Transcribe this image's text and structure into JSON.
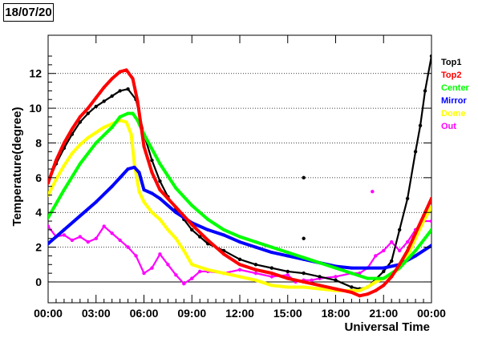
{
  "header": {
    "date": "18/07/20"
  },
  "chart_data": {
    "type": "scatter",
    "title": "",
    "xlabel": "Universal Time",
    "ylabel": "Temperature(degree)",
    "xlim": [
      0,
      24
    ],
    "ylim": [
      -1.2,
      14.2
    ],
    "x_tick_values": [
      0,
      3,
      6,
      9,
      12,
      15,
      18,
      21,
      24
    ],
    "x_tick_labels": [
      "00:00",
      "03:00",
      "06:00",
      "09:00",
      "12:00",
      "15:00",
      "18:00",
      "21:00",
      "00:00"
    ],
    "y_tick_values": [
      0,
      2,
      4,
      6,
      8,
      10,
      12
    ],
    "y_tick_labels": [
      "0",
      "2",
      "4",
      "6",
      "8",
      "10",
      "12"
    ],
    "grid": "horizontal dotted",
    "zero_line": true,
    "legend_position": "right",
    "series": [
      {
        "name": "Top1",
        "color": "#000000",
        "x": [
          0,
          0.5,
          1,
          1.5,
          2,
          2.5,
          3,
          3.5,
          4,
          4.5,
          5,
          5.5,
          6,
          6.5,
          7,
          7.5,
          8,
          8.5,
          9,
          9.5,
          10,
          11,
          12,
          13,
          14,
          15,
          16,
          17,
          18,
          19,
          19.5,
          20,
          21,
          21.5,
          22,
          22.5,
          23,
          23.3,
          23.6,
          24
        ],
        "y": [
          5.7,
          6.8,
          7.7,
          8.5,
          9.2,
          9.7,
          10.1,
          10.4,
          10.7,
          11.0,
          11.1,
          10.5,
          8.5,
          7.0,
          5.8,
          4.9,
          4.2,
          3.6,
          3.0,
          2.6,
          2.2,
          1.8,
          1.3,
          1.0,
          0.8,
          0.6,
          0.5,
          0.3,
          0.1,
          -0.3,
          -0.4,
          -0.3,
          0.6,
          1.2,
          3.0,
          4.8,
          7.5,
          9.0,
          11.0,
          13.0
        ]
      },
      {
        "name": "Top2",
        "color": "#ff0000",
        "x": [
          0,
          0.5,
          1,
          1.5,
          2,
          2.5,
          3,
          3.5,
          4,
          4.5,
          4.9,
          5.3,
          5.6,
          6,
          6.5,
          7,
          7.5,
          8,
          8.5,
          9,
          10,
          11,
          12,
          13,
          14,
          15,
          16,
          17,
          18,
          19,
          19.5,
          20,
          20.5,
          21,
          21.5,
          22,
          22.5,
          23,
          23.5,
          24
        ],
        "y": [
          5.7,
          7.0,
          8.0,
          8.8,
          9.5,
          10.0,
          10.6,
          11.2,
          11.7,
          12.1,
          12.2,
          11.7,
          10.4,
          7.8,
          6.3,
          5.3,
          4.8,
          4.3,
          3.8,
          3.3,
          2.4,
          1.6,
          1.0,
          0.7,
          0.5,
          0.2,
          0.0,
          -0.2,
          -0.4,
          -0.6,
          -0.8,
          -0.7,
          -0.5,
          -0.2,
          0.3,
          1.0,
          1.8,
          2.8,
          3.8,
          4.8
        ]
      },
      {
        "name": "Center",
        "color": "#00ff00",
        "x": [
          0,
          1,
          2,
          3,
          4,
          4.5,
          5,
          5.3,
          5.6,
          6,
          7,
          8,
          9,
          10,
          11,
          12,
          13,
          14,
          15,
          16,
          17,
          18,
          19,
          20,
          21,
          22,
          23,
          24
        ],
        "y": [
          3.7,
          5.3,
          6.8,
          8.0,
          8.9,
          9.5,
          9.7,
          9.7,
          9.3,
          8.5,
          6.8,
          5.4,
          4.4,
          3.6,
          3.0,
          2.6,
          2.3,
          2.0,
          1.7,
          1.4,
          1.1,
          0.8,
          0.5,
          0.2,
          0.2,
          0.8,
          1.8,
          3.0
        ]
      },
      {
        "name": "Mirror",
        "color": "#0000ff",
        "x": [
          0,
          1,
          2,
          3,
          4,
          4.5,
          5,
          5.4,
          5.7,
          6,
          6.5,
          7,
          8,
          9,
          10,
          11,
          12,
          13,
          14,
          15,
          16,
          17,
          18,
          19,
          20,
          21,
          22,
          23,
          24
        ],
        "y": [
          2.2,
          3.0,
          3.8,
          4.6,
          5.5,
          6.0,
          6.5,
          6.6,
          6.3,
          5.3,
          5.1,
          4.8,
          4.0,
          3.4,
          3.0,
          2.7,
          2.3,
          2.0,
          1.7,
          1.5,
          1.3,
          1.1,
          0.9,
          0.8,
          0.8,
          0.8,
          1.0,
          1.5,
          2.1
        ]
      },
      {
        "name": "Dome",
        "color": "#ffff00",
        "x": [
          0,
          0.5,
          1,
          1.5,
          2,
          2.5,
          3,
          3.5,
          4,
          4.5,
          4.9,
          5.2,
          5.4,
          5.7,
          6,
          6.5,
          7,
          7.5,
          8,
          8.5,
          9,
          10,
          11,
          12,
          13,
          14,
          15,
          16,
          17,
          18,
          19,
          19.5,
          20,
          20.5,
          21,
          21.5,
          22,
          22.5,
          23,
          23.5,
          24
        ],
        "y": [
          5.0,
          5.9,
          6.7,
          7.4,
          7.9,
          8.3,
          8.6,
          8.9,
          9.1,
          9.3,
          9.2,
          8.5,
          6.8,
          5.2,
          4.6,
          4.0,
          3.6,
          3.0,
          2.5,
          1.8,
          1.0,
          0.7,
          0.5,
          0.3,
          0.1,
          -0.2,
          -0.3,
          -0.3,
          -0.4,
          -0.5,
          -0.5,
          -0.5,
          -0.3,
          0.0,
          0.2,
          0.4,
          0.8,
          1.5,
          2.5,
          3.5,
          4.3
        ]
      },
      {
        "name": "Out",
        "color": "#ff00ff",
        "x": [
          0,
          0.5,
          1,
          1.5,
          2,
          2.5,
          3,
          3.5,
          4,
          4.5,
          5,
          5.5,
          6,
          6.5,
          7,
          7.5,
          8,
          8.5,
          9,
          9.5,
          10,
          11,
          12,
          13,
          14,
          15,
          15.5,
          16,
          16.5,
          17,
          18,
          19,
          19.5,
          20,
          20.5,
          21,
          21.5,
          22,
          22.5,
          23,
          23.5,
          24
        ],
        "y": [
          3.2,
          2.6,
          2.7,
          2.4,
          2.6,
          2.3,
          2.5,
          3.2,
          2.8,
          2.4,
          2.0,
          1.5,
          0.5,
          0.8,
          1.6,
          1.0,
          0.4,
          -0.1,
          0.2,
          0.6,
          0.6,
          0.5,
          0.7,
          0.5,
          0.3,
          0.4,
          0.0,
          0.1,
          0.1,
          0.2,
          0.3,
          0.5,
          0.5,
          0.8,
          1.5,
          1.8,
          2.3,
          1.8,
          2.3,
          3.0,
          3.5,
          3.5
        ]
      }
    ],
    "annotations": [
      {
        "series": "Out",
        "x": 20.3,
        "y": 5.2
      },
      {
        "series": "Top1",
        "x": 16.0,
        "y": 6.0
      },
      {
        "series": "Top1",
        "x": 16.0,
        "y": 2.5
      }
    ]
  }
}
